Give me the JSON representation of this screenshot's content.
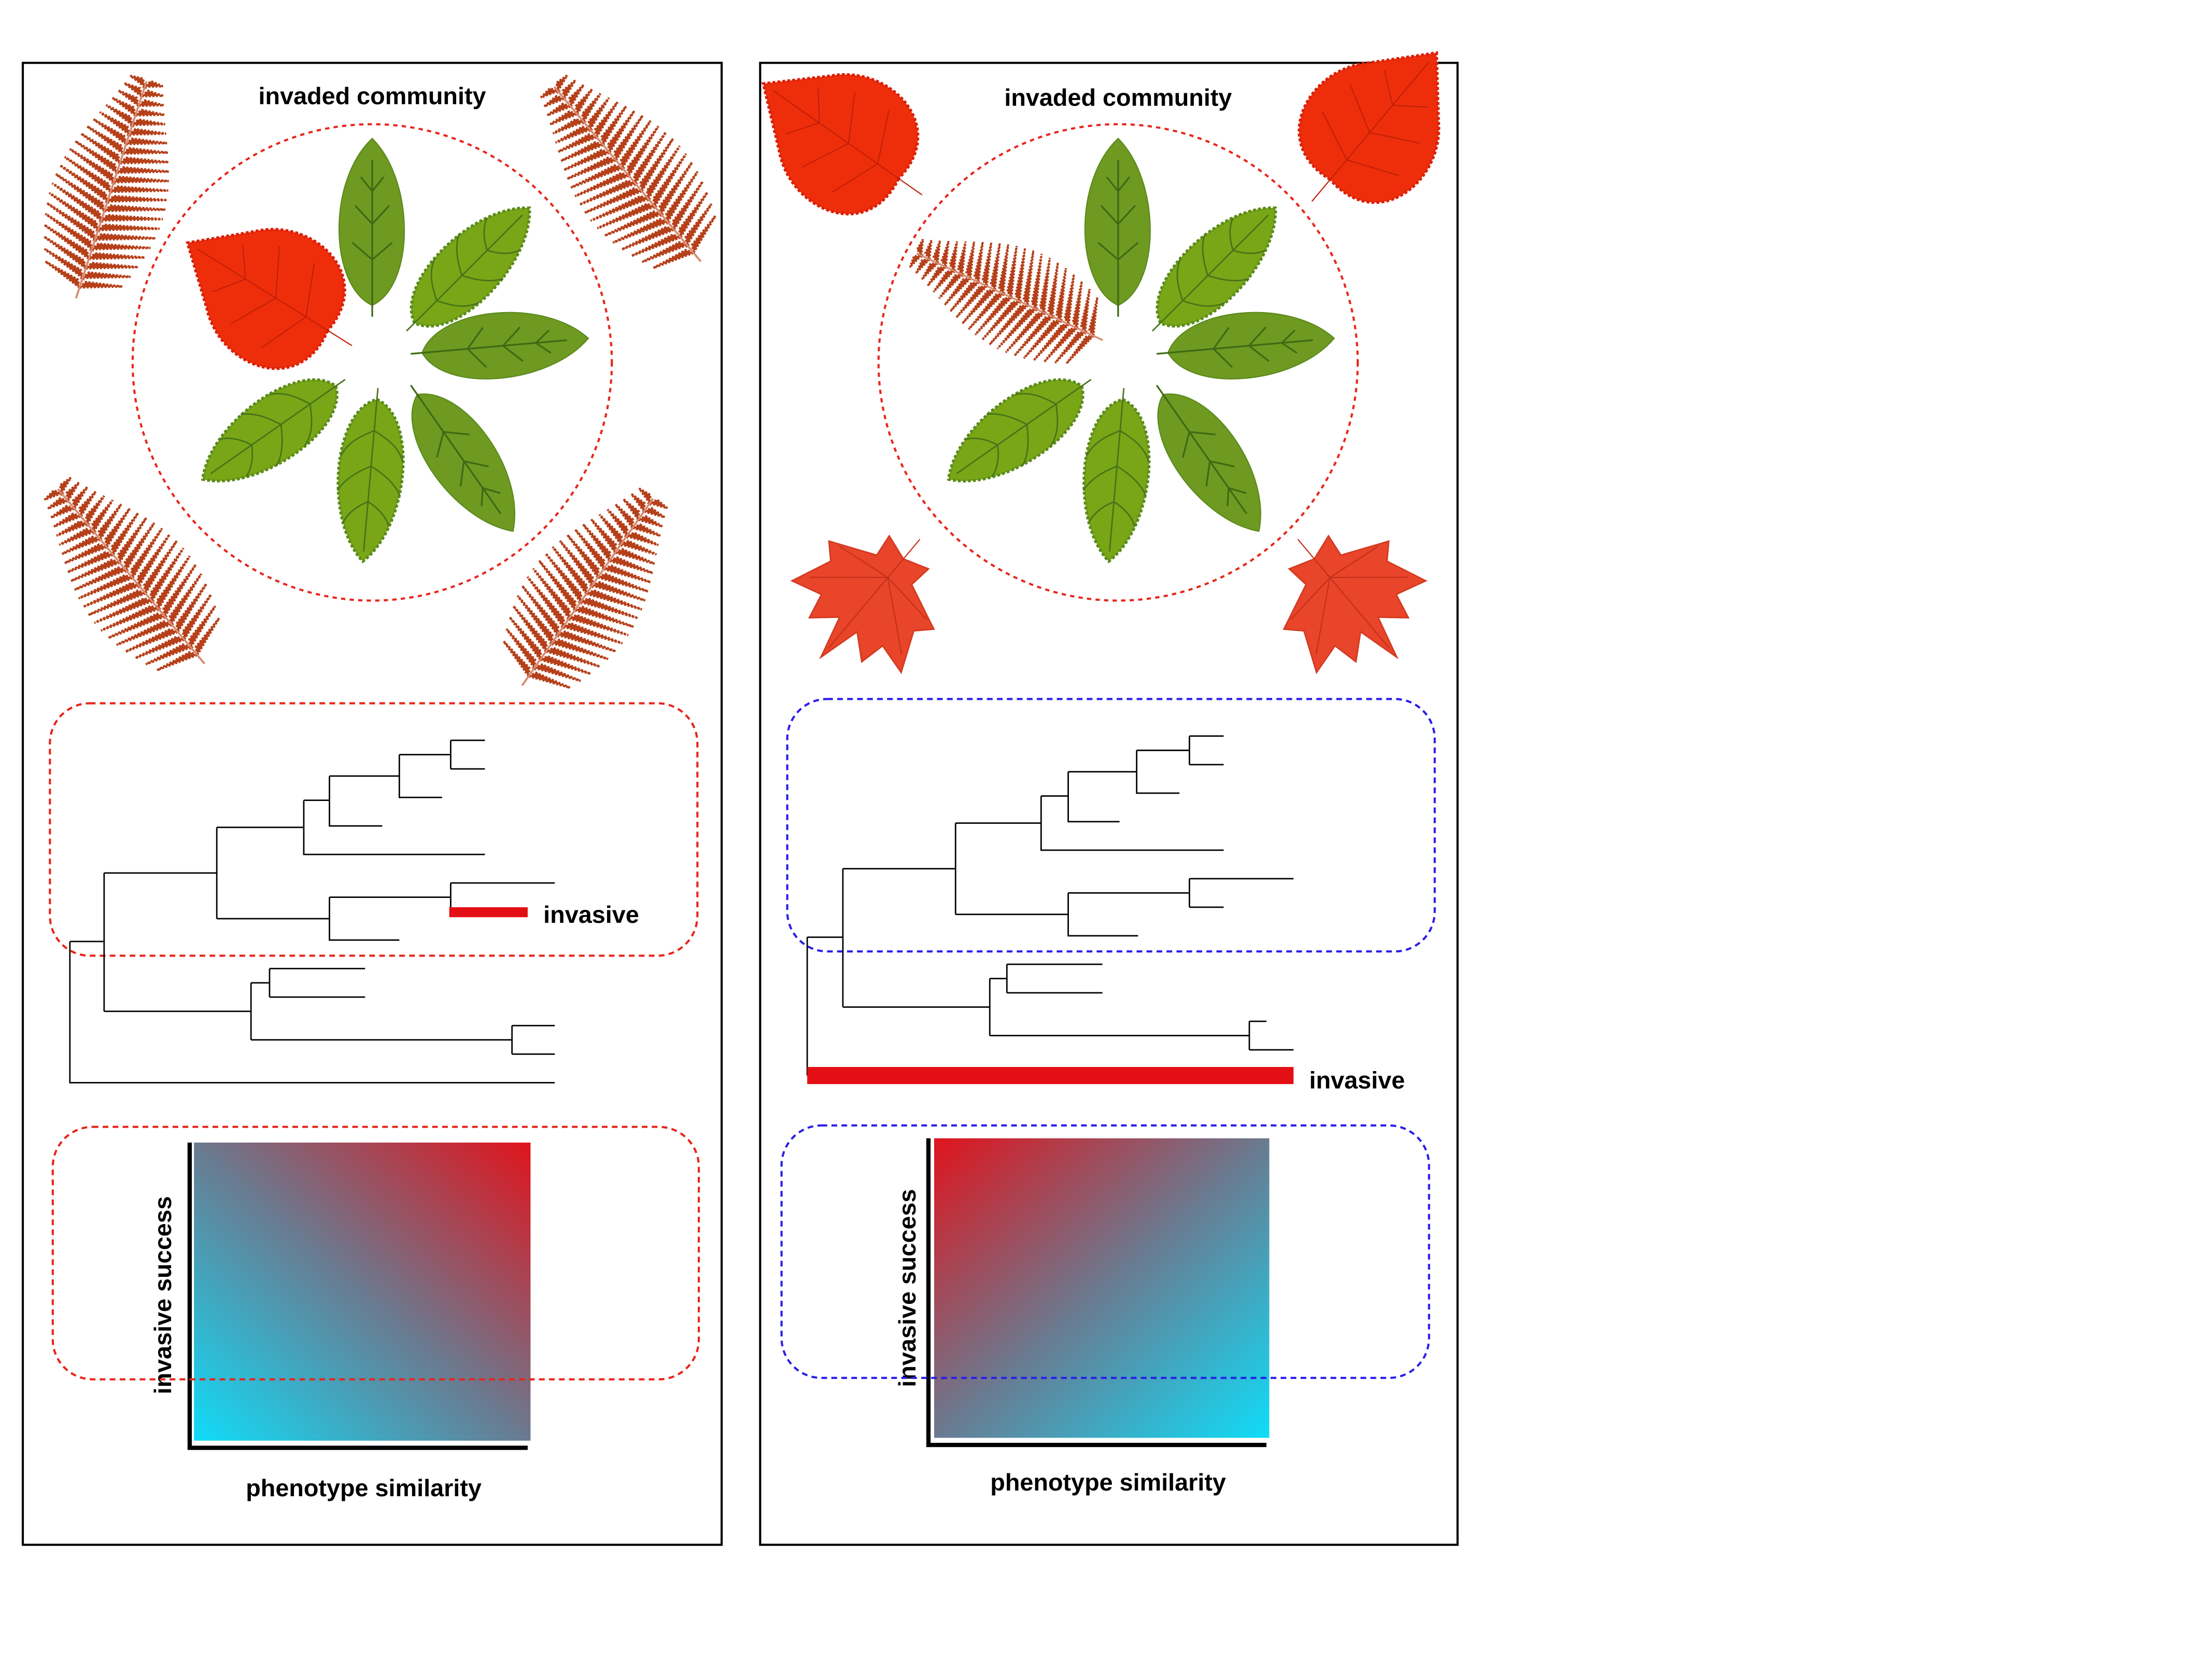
{
  "panels": [
    {
      "title": "invaded community",
      "tree_label": "invasive",
      "y_axis_label": "invasive success",
      "x_axis_label": "phenotype similarity",
      "box_color": "#e8251b"
    },
    {
      "title": "invaded community",
      "tree_label": "invasive",
      "y_axis_label": "invasive success",
      "x_axis_label": "phenotype similarity",
      "box_color": "#2a1ee8"
    }
  ],
  "colors": {
    "fern": "#b5401a",
    "green_leaf": "#6e9a22",
    "green_leaf_light": "#78a616",
    "red_leaf": "#ee2e0b",
    "maple": "#e8452a",
    "invasive_bar": "#e30f15",
    "gradient_red": "#e0141c",
    "gradient_cyan": "#10dcf8"
  }
}
